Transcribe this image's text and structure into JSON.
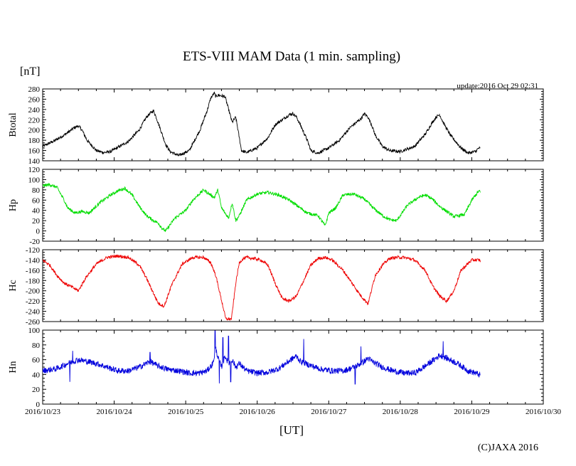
{
  "page": {
    "title": "ETS-VIII MAM Data (1 min. sampling)",
    "unit_label": "[nT]",
    "update_text": "update:2016 Oct 29 02:31",
    "xlabel": "[UT]",
    "copyright": "(C)JAXA 2016"
  },
  "chart_data": {
    "type": "line",
    "title": "ETS-VIII MAM Data (1 min. sampling)",
    "xlabel": "[UT]",
    "x_units": "days since 2016/10/23 00:00 UT",
    "xlim": [
      0,
      7
    ],
    "x_ticks": [
      0,
      1,
      2,
      3,
      4,
      5,
      6,
      7
    ],
    "x_tick_labels": [
      "2016/10/23",
      "2016/10/24",
      "2016/10/25",
      "2016/10/26",
      "2016/10/27",
      "2016/10/28",
      "2016/10/29",
      "2016/10/30"
    ],
    "grid": false,
    "panels": [
      {
        "name": "Btotal",
        "ylabel": "Btotal",
        "color": "#000000",
        "ylim": [
          140,
          280
        ],
        "y_ticks": [
          140,
          160,
          180,
          200,
          220,
          240,
          260,
          280
        ],
        "noise": 3,
        "x": [
          0,
          0.15,
          0.3,
          0.45,
          0.5,
          0.55,
          0.62,
          0.75,
          0.85,
          0.95,
          1.05,
          1.2,
          1.35,
          1.45,
          1.5,
          1.55,
          1.6,
          1.65,
          1.72,
          1.78,
          1.9,
          2.05,
          2.2,
          2.3,
          2.35,
          2.4,
          2.42,
          2.45,
          2.55,
          2.6,
          2.65,
          2.7,
          2.78,
          2.85,
          3.0,
          3.15,
          3.25,
          3.35,
          3.45,
          3.5,
          3.55,
          3.62,
          3.7,
          3.75,
          3.85,
          4.0,
          4.15,
          4.3,
          4.45,
          4.5,
          4.55,
          4.6,
          4.65,
          4.75,
          4.85,
          5.0,
          5.2,
          5.35,
          5.45,
          5.5,
          5.55,
          5.6,
          5.7,
          5.85,
          5.95,
          6.05,
          6.1,
          6.12
        ],
        "y": [
          168,
          178,
          190,
          205,
          208,
          200,
          180,
          160,
          156,
          158,
          166,
          178,
          200,
          225,
          232,
          238,
          220,
          200,
          172,
          158,
          150,
          160,
          200,
          238,
          262,
          272,
          265,
          268,
          265,
          240,
          215,
          225,
          160,
          156,
          165,
          185,
          210,
          220,
          230,
          232,
          225,
          205,
          180,
          160,
          155,
          165,
          180,
          205,
          222,
          232,
          225,
          210,
          190,
          168,
          160,
          158,
          168,
          192,
          215,
          225,
          230,
          215,
          190,
          165,
          155,
          158,
          165,
          163
        ]
      },
      {
        "name": "Hp",
        "ylabel": "Hp",
        "color": "#00dd00",
        "ylim": [
          -20,
          120
        ],
        "y_ticks": [
          -20,
          0,
          20,
          40,
          60,
          80,
          100,
          120
        ],
        "noise": 3,
        "x": [
          0,
          0.1,
          0.2,
          0.3,
          0.35,
          0.4,
          0.45,
          0.55,
          0.65,
          0.8,
          0.95,
          1.05,
          1.15,
          1.25,
          1.35,
          1.45,
          1.55,
          1.62,
          1.67,
          1.72,
          1.85,
          2.0,
          2.1,
          2.25,
          2.3,
          2.4,
          2.45,
          2.5,
          2.55,
          2.6,
          2.65,
          2.7,
          2.75,
          2.85,
          3.0,
          3.15,
          3.3,
          3.45,
          3.55,
          3.6,
          3.7,
          3.85,
          3.95,
          4.0,
          4.1,
          4.2,
          4.35,
          4.5,
          4.62,
          4.75,
          4.85,
          4.95,
          5.1,
          5.25,
          5.35,
          5.45,
          5.55,
          5.65,
          5.75,
          5.9,
          6.0,
          6.1,
          6.12
        ],
        "y": [
          88,
          90,
          85,
          60,
          45,
          40,
          35,
          38,
          35,
          55,
          70,
          78,
          83,
          70,
          48,
          30,
          20,
          15,
          5,
          0,
          25,
          40,
          60,
          80,
          75,
          65,
          80,
          45,
          35,
          25,
          55,
          20,
          30,
          60,
          72,
          75,
          70,
          60,
          50,
          45,
          35,
          30,
          10,
          35,
          45,
          70,
          72,
          62,
          45,
          30,
          22,
          20,
          50,
          65,
          70,
          62,
          48,
          38,
          28,
          32,
          60,
          78,
          75
        ]
      },
      {
        "name": "Hc",
        "ylabel": "Hc",
        "color": "#ee0000",
        "ylim": [
          -260,
          -120
        ],
        "y_ticks": [
          -260,
          -240,
          -220,
          -200,
          -180,
          -160,
          -140,
          -120
        ],
        "noise": 3,
        "x": [
          0,
          0.1,
          0.2,
          0.3,
          0.4,
          0.5,
          0.6,
          0.75,
          0.9,
          1.05,
          1.2,
          1.35,
          1.45,
          1.55,
          1.62,
          1.7,
          1.8,
          1.95,
          2.1,
          2.25,
          2.35,
          2.42,
          2.47,
          2.52,
          2.56,
          2.6,
          2.64,
          2.7,
          2.75,
          2.8,
          2.85,
          2.95,
          3.05,
          3.15,
          3.25,
          3.35,
          3.45,
          3.55,
          3.65,
          3.75,
          3.85,
          3.95,
          4.05,
          4.2,
          4.35,
          4.45,
          4.55,
          4.65,
          4.75,
          4.85,
          4.95,
          5.05,
          5.2,
          5.35,
          5.45,
          5.55,
          5.65,
          5.75,
          5.85,
          6.0,
          6.1,
          6.12
        ],
        "y": [
          -140,
          -150,
          -170,
          -185,
          -192,
          -200,
          -175,
          -148,
          -135,
          -132,
          -135,
          -150,
          -175,
          -205,
          -225,
          -230,
          -190,
          -148,
          -135,
          -135,
          -145,
          -170,
          -200,
          -230,
          -255,
          -255,
          -255,
          -185,
          -145,
          -138,
          -135,
          -137,
          -140,
          -150,
          -185,
          -215,
          -220,
          -210,
          -180,
          -150,
          -137,
          -135,
          -140,
          -160,
          -190,
          -210,
          -225,
          -170,
          -150,
          -137,
          -135,
          -135,
          -140,
          -160,
          -190,
          -210,
          -220,
          -200,
          -160,
          -140,
          -140,
          -142
        ]
      },
      {
        "name": "Hn",
        "ylabel": "Hn",
        "color": "#0000dd",
        "ylim": [
          0,
          100
        ],
        "y_ticks": [
          0,
          20,
          40,
          60,
          80,
          100
        ],
        "noise": 4,
        "x": [
          0,
          0.2,
          0.35,
          0.5,
          0.6,
          0.75,
          0.9,
          1.05,
          1.2,
          1.35,
          1.45,
          1.5,
          1.6,
          1.75,
          1.9,
          2.05,
          2.2,
          2.3,
          2.38,
          2.42,
          2.46,
          2.5,
          2.55,
          2.6,
          2.65,
          2.7,
          2.75,
          2.85,
          3.0,
          3.15,
          3.3,
          3.4,
          3.5,
          3.55,
          3.6,
          3.75,
          3.9,
          4.05,
          4.2,
          4.3,
          4.4,
          4.5,
          4.55,
          4.6,
          4.75,
          4.9,
          5.05,
          5.2,
          5.3,
          5.4,
          5.5,
          5.55,
          5.65,
          5.8,
          5.95,
          6.05,
          6.1,
          6.12
        ],
        "y": [
          45,
          48,
          55,
          60,
          58,
          55,
          50,
          45,
          45,
          50,
          55,
          58,
          52,
          47,
          45,
          42,
          42,
          45,
          55,
          75,
          60,
          50,
          65,
          55,
          60,
          50,
          55,
          45,
          42,
          43,
          48,
          55,
          62,
          65,
          58,
          52,
          47,
          45,
          45,
          48,
          52,
          58,
          62,
          58,
          50,
          45,
          42,
          42,
          48,
          55,
          62,
          66,
          62,
          55,
          45,
          42,
          40,
          38
        ],
        "spikes": [
          {
            "x": 2.41,
            "y": 99
          },
          {
            "x": 2.47,
            "y": 28
          },
          {
            "x": 2.52,
            "y": 90
          },
          {
            "x": 2.6,
            "y": 92
          },
          {
            "x": 2.63,
            "y": 30
          },
          {
            "x": 0.38,
            "y": 30
          },
          {
            "x": 0.42,
            "y": 72
          },
          {
            "x": 1.5,
            "y": 70
          },
          {
            "x": 3.65,
            "y": 88
          },
          {
            "x": 4.37,
            "y": 27
          },
          {
            "x": 4.45,
            "y": 78
          },
          {
            "x": 5.6,
            "y": 85
          }
        ]
      }
    ]
  }
}
